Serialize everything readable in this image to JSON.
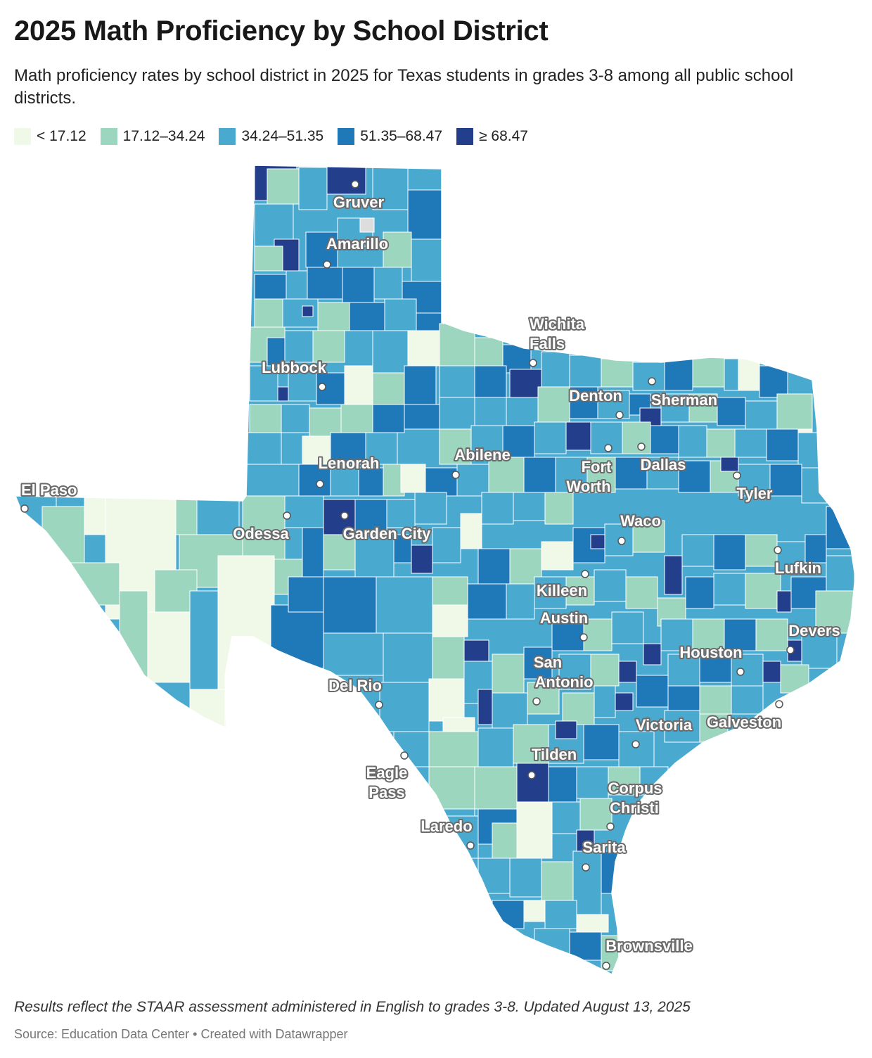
{
  "header": {
    "title": "2025 Math Proficiency by School District",
    "subtitle": "Math proficiency rates by school district in 2025 for Texas students in grades 3-8 among all public school districts."
  },
  "legend": {
    "items": [
      {
        "label": "< 17.12",
        "color": "#f0f9e8"
      },
      {
        "label": "17.12–34.24",
        "color": "#9dd6bf"
      },
      {
        "label": "34.24–51.35",
        "color": "#4aa9cf"
      },
      {
        "label": "51.35–68.47",
        "color": "#1f78b8"
      },
      {
        "label": "≥ 68.47",
        "color": "#233f8b"
      }
    ]
  },
  "map": {
    "cities": [
      {
        "name": "Gruver",
        "lines": [
          "Gruver"
        ]
      },
      {
        "name": "Amarillo",
        "lines": [
          "Amarillo"
        ]
      },
      {
        "name": "Wichita Falls",
        "lines": [
          "Wichita",
          "Falls"
        ]
      },
      {
        "name": "Lubbock",
        "lines": [
          "Lubbock"
        ]
      },
      {
        "name": "Denton",
        "lines": [
          "Denton"
        ]
      },
      {
        "name": "Sherman",
        "lines": [
          "Sherman"
        ]
      },
      {
        "name": "Abilene",
        "lines": [
          "Abilene"
        ]
      },
      {
        "name": "Fort Worth",
        "lines": [
          "Fort",
          "Worth"
        ]
      },
      {
        "name": "Dallas",
        "lines": [
          "Dallas"
        ]
      },
      {
        "name": "Lenorah",
        "lines": [
          "Lenorah"
        ]
      },
      {
        "name": "El Paso",
        "lines": [
          "El Paso"
        ]
      },
      {
        "name": "Tyler",
        "lines": [
          "Tyler"
        ]
      },
      {
        "name": "Odessa",
        "lines": [
          "Odessa"
        ]
      },
      {
        "name": "Garden City",
        "lines": [
          "Garden City"
        ]
      },
      {
        "name": "Waco",
        "lines": [
          "Waco"
        ]
      },
      {
        "name": "Lufkin",
        "lines": [
          "Lufkin"
        ]
      },
      {
        "name": "Killeen",
        "lines": [
          "Killeen"
        ]
      },
      {
        "name": "Austin",
        "lines": [
          "Austin"
        ]
      },
      {
        "name": "Devers",
        "lines": [
          "Devers"
        ]
      },
      {
        "name": "Houston",
        "lines": [
          "Houston"
        ]
      },
      {
        "name": "San Antonio",
        "lines": [
          "San",
          "Antonio"
        ]
      },
      {
        "name": "Del Rio",
        "lines": [
          "Del Rio"
        ]
      },
      {
        "name": "Victoria",
        "lines": [
          "Victoria"
        ]
      },
      {
        "name": "Galveston",
        "lines": [
          "Galveston"
        ]
      },
      {
        "name": "Tilden",
        "lines": [
          "Tilden"
        ]
      },
      {
        "name": "Eagle Pass",
        "lines": [
          "Eagle",
          "Pass"
        ]
      },
      {
        "name": "Corpus Christi",
        "lines": [
          "Corpus",
          "Christi"
        ]
      },
      {
        "name": "Laredo",
        "lines": [
          "Laredo"
        ]
      },
      {
        "name": "Sarita",
        "lines": [
          "Sarita"
        ]
      },
      {
        "name": "Brownsville",
        "lines": [
          "Brownsville"
        ]
      }
    ]
  },
  "footer": {
    "notes": "Results reflect the STAAR assessment administered in English to grades 3-8. Updated August 13, 2025",
    "byline": "Source: Education Data Center • Created with Datawrapper"
  }
}
